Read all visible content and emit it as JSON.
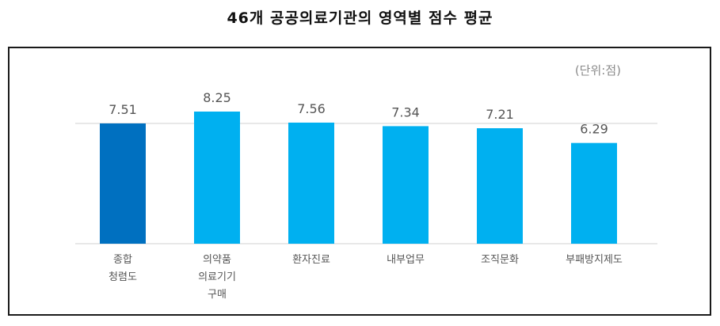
{
  "title": "46개 공공의료기관의 영역별 점수 평균",
  "unit": "(단위:점)",
  "chart_data": {
    "type": "bar",
    "title": "46개 공공의료기관의 영역별 점수 평균",
    "categories": [
      "종합\n청렴도",
      "의약품\n의료기기\n구매",
      "환자진료",
      "내부업무",
      "조직문화",
      "부패방지제도"
    ],
    "values": [
      7.51,
      8.25,
      7.56,
      7.34,
      7.21,
      6.29
    ],
    "value_labels": [
      "7.51",
      "8.25",
      "7.56",
      "7.34",
      "7.21",
      "6.29"
    ],
    "colors": [
      "#0070c0",
      "#00b0f0",
      "#00b0f0",
      "#00b0f0",
      "#00b0f0",
      "#00b0f0"
    ],
    "reference_line": 7.51,
    "ylim": [
      0,
      10
    ],
    "grid": false,
    "legend": "none",
    "xlabel": "",
    "ylabel": ""
  }
}
